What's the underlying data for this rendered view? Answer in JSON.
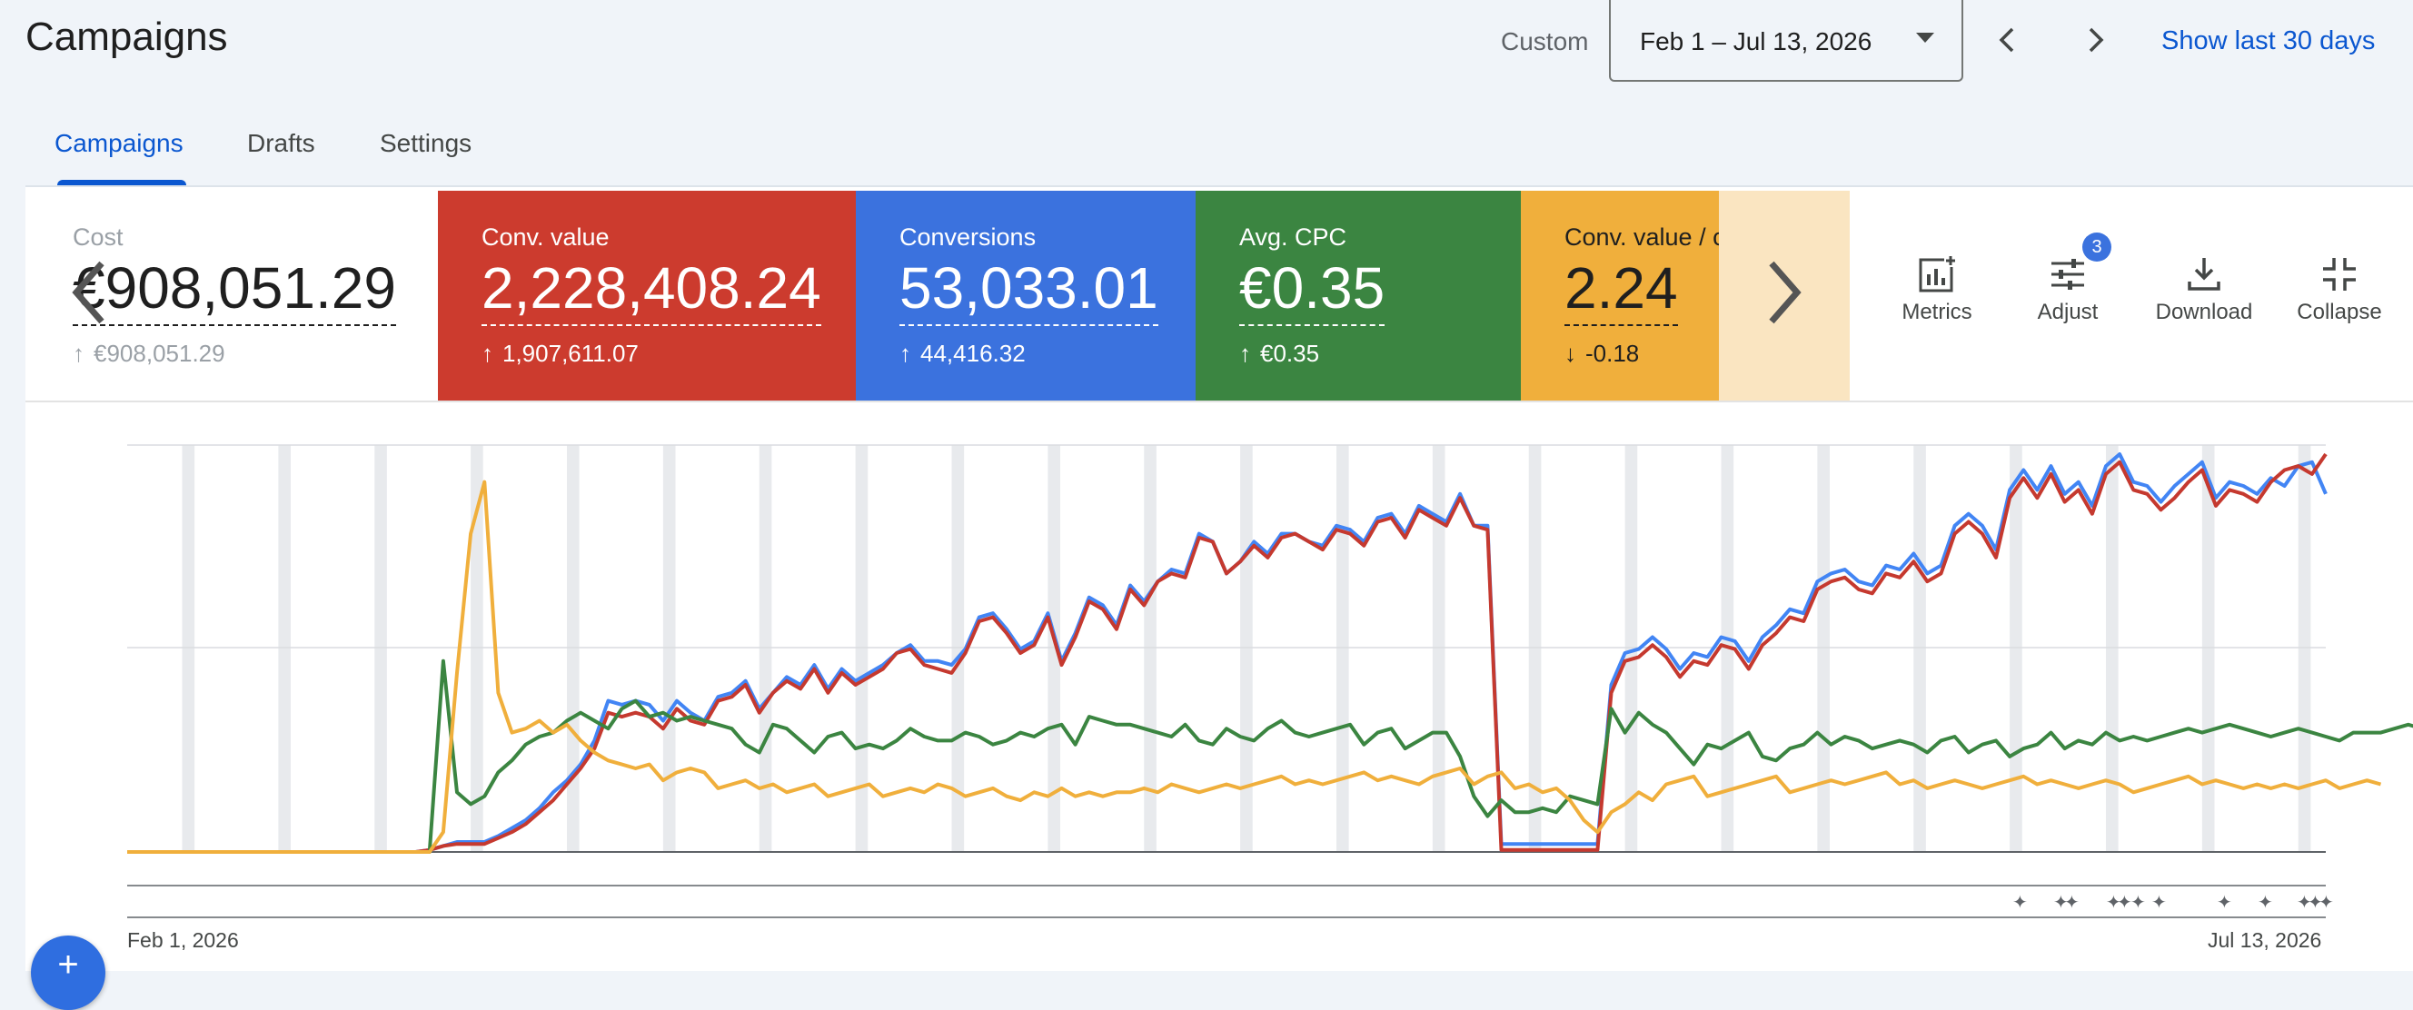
{
  "header": {
    "title": "Campaigns",
    "date_label": "Custom",
    "date_range": "Feb 1 – Jul 13, 2026",
    "show_last": "Show last 30 days"
  },
  "tabs": [
    {
      "label": "Campaigns",
      "active": true
    },
    {
      "label": "Drafts",
      "active": false
    },
    {
      "label": "Settings",
      "active": false
    }
  ],
  "scorecards": [
    {
      "label": "Cost",
      "value": "€908,051.29",
      "delta": "€908,051.29",
      "direction": "up",
      "color": "#ffffff"
    },
    {
      "label": "Conv. value",
      "value": "2,228,408.24",
      "delta": "1,907,611.07",
      "direction": "up",
      "color": "#cc3b2e"
    },
    {
      "label": "Conversions",
      "value": "53,033.01",
      "delta": "44,416.32",
      "direction": "up",
      "color": "#3b72de"
    },
    {
      "label": "Avg. CPC",
      "value": "€0.35",
      "delta": "€0.35",
      "direction": "up",
      "color": "#3b8541"
    },
    {
      "label": "Conv. value / cost",
      "value": "2.24",
      "delta": "-0.18",
      "direction": "down",
      "color": "#f0af3c"
    }
  ],
  "toolbar": {
    "metrics": "Metrics",
    "adjust": "Adjust",
    "adjust_badge": "3",
    "download": "Download",
    "collapse": "Collapse"
  },
  "icons": {
    "prev": "chevron-left-icon",
    "next": "chevron-right-icon",
    "dropdown": "caret-down-icon",
    "metrics": "bar-chart-add-icon",
    "adjust": "tune-icon",
    "download": "download-icon",
    "collapse": "collapse-icon"
  },
  "chart_data": {
    "type": "line",
    "x_start": "Feb 1, 2026",
    "x_end": "Jul 13, 2026",
    "series": [
      {
        "color": "#4285f4",
        "values": [
          0,
          0,
          0,
          0,
          0,
          0,
          0,
          0,
          0,
          0,
          0,
          0,
          0,
          0,
          0,
          0,
          0,
          0,
          0,
          0,
          0,
          0,
          0.5,
          1.5,
          2.5,
          2.5,
          2.5,
          4,
          6,
          8,
          11,
          15,
          18,
          22,
          28,
          38,
          37,
          38,
          37,
          33,
          38,
          35,
          33,
          39,
          40,
          43,
          36,
          40,
          44,
          42,
          47,
          41,
          46,
          43,
          45,
          47,
          50,
          52,
          48,
          48,
          47,
          51,
          59,
          60,
          56,
          51,
          53,
          60,
          48,
          55,
          64,
          62,
          57,
          67,
          63,
          68,
          71,
          70,
          80,
          78,
          70,
          73,
          78,
          75,
          80,
          80,
          78,
          77,
          82,
          81,
          78,
          84,
          85,
          80,
          87,
          85,
          83,
          90,
          82,
          82,
          2,
          2,
          2,
          2,
          2,
          2,
          2,
          2,
          42,
          50,
          51,
          54,
          51,
          46,
          50,
          49,
          54,
          53,
          48,
          54,
          57,
          61,
          60,
          68,
          70,
          71,
          68,
          67,
          72,
          71,
          75,
          70,
          72,
          82,
          85,
          82,
          76,
          91,
          96,
          91,
          97,
          90,
          93,
          87,
          97,
          100,
          93,
          92,
          88,
          92,
          95,
          98,
          89,
          93,
          92,
          90,
          94,
          92,
          97,
          98,
          90
        ],
        "max": 100
      },
      {
        "color": "#c5392f",
        "values": [
          0,
          0,
          0,
          0,
          0,
          0,
          0,
          0,
          0,
          0,
          0,
          0,
          0,
          0,
          0,
          0,
          0,
          0,
          0,
          0,
          0,
          0,
          0.5,
          1.5,
          2,
          2,
          2,
          3.5,
          5,
          7,
          10,
          13,
          17,
          21,
          26,
          35,
          34,
          35,
          34,
          31,
          36,
          33,
          32,
          38,
          39,
          42,
          35,
          40,
          43,
          41,
          46,
          40,
          45,
          42,
          44,
          46,
          50,
          51,
          47,
          46,
          45,
          50,
          58,
          59,
          55,
          50,
          52,
          59,
          47,
          54,
          63,
          61,
          56,
          66,
          62,
          68,
          70,
          69,
          79,
          78,
          70,
          73,
          77,
          74,
          79,
          80,
          78,
          76,
          81,
          80,
          77,
          83,
          84,
          79,
          86,
          84,
          82,
          89,
          82,
          81,
          0.5,
          0.5,
          0.5,
          0.5,
          0.5,
          0.5,
          0.5,
          0.5,
          40,
          48,
          49,
          52,
          49,
          44,
          48,
          47,
          52,
          51,
          46,
          52,
          55,
          59,
          58,
          66,
          68,
          69,
          66,
          65,
          70,
          69,
          73,
          68,
          70,
          80,
          83,
          80,
          74,
          89,
          94,
          89,
          95,
          88,
          91,
          85,
          95,
          98,
          91,
          90,
          86,
          89,
          93,
          96,
          87,
          91,
          90,
          88,
          93,
          96,
          97,
          95,
          100
        ],
        "max": 100
      },
      {
        "color": "#3b8541",
        "values": [
          0,
          0,
          0,
          0,
          0,
          0,
          0,
          0,
          0,
          0,
          0,
          0,
          0,
          0,
          0,
          0,
          0,
          0,
          0,
          0,
          0,
          0,
          0,
          48,
          15,
          12,
          14,
          20,
          23,
          27,
          29,
          30,
          33,
          35,
          33,
          31,
          36,
          38,
          34,
          35,
          33,
          34,
          33,
          32,
          31,
          27,
          25,
          32,
          31,
          28,
          25,
          29,
          30,
          26,
          27,
          26,
          28,
          31,
          29,
          28,
          28,
          30,
          29,
          27,
          28,
          30,
          29,
          31,
          32,
          27,
          34,
          33,
          32,
          32,
          31,
          30,
          29,
          32,
          28,
          27,
          31,
          29,
          28,
          31,
          33,
          30,
          29,
          30,
          31,
          32,
          27,
          30,
          31,
          26,
          28,
          30,
          30,
          24,
          14,
          9,
          13,
          10,
          10,
          11,
          10,
          14,
          13,
          12,
          36,
          30,
          35,
          32,
          30,
          26,
          22,
          27,
          26,
          28,
          30,
          24,
          23,
          26,
          27,
          30,
          27,
          29,
          28,
          26,
          27,
          28,
          27,
          25,
          28,
          29,
          25,
          27,
          28,
          24,
          26,
          27,
          30,
          26,
          28,
          27,
          30,
          28,
          29,
          28,
          29,
          30,
          31,
          30,
          31,
          32,
          31,
          30,
          29,
          30,
          31,
          30,
          29,
          28,
          30,
          30,
          30,
          31,
          32,
          31,
          30,
          31
        ],
        "max": 100
      },
      {
        "color": "#f0af3c",
        "values": [
          0,
          0,
          0,
          0,
          0,
          0,
          0,
          0,
          0,
          0,
          0,
          0,
          0,
          0,
          0,
          0,
          0,
          0,
          0,
          0,
          0,
          0,
          0,
          5,
          45,
          80,
          93,
          40,
          30,
          31,
          33,
          30,
          32,
          28,
          25,
          23,
          22,
          21,
          22,
          18,
          20,
          21,
          20,
          16,
          17,
          18,
          16,
          17,
          15,
          16,
          17,
          14,
          15,
          16,
          17,
          14,
          15,
          16,
          15,
          17,
          16,
          14,
          15,
          16,
          14,
          13,
          15,
          14,
          16,
          14,
          15,
          14,
          15,
          15,
          16,
          15,
          17,
          16,
          15,
          16,
          17,
          16,
          17,
          18,
          19,
          17,
          18,
          17,
          18,
          19,
          20,
          18,
          19,
          18,
          17,
          19,
          20,
          21,
          17,
          19,
          20,
          16,
          17,
          15,
          16,
          13,
          8,
          5,
          10,
          12,
          15,
          13,
          17,
          18,
          19,
          14,
          15,
          16,
          17,
          18,
          19,
          15,
          16,
          17,
          18,
          17,
          18,
          19,
          20,
          17,
          18,
          16,
          17,
          18,
          17,
          16,
          17,
          18,
          19,
          17,
          18,
          17,
          16,
          17,
          18,
          17,
          15,
          16,
          17,
          18,
          19,
          17,
          18,
          17,
          16,
          17,
          16,
          17,
          16,
          17,
          18,
          16,
          17,
          18,
          17
        ],
        "max": 100
      }
    ]
  }
}
